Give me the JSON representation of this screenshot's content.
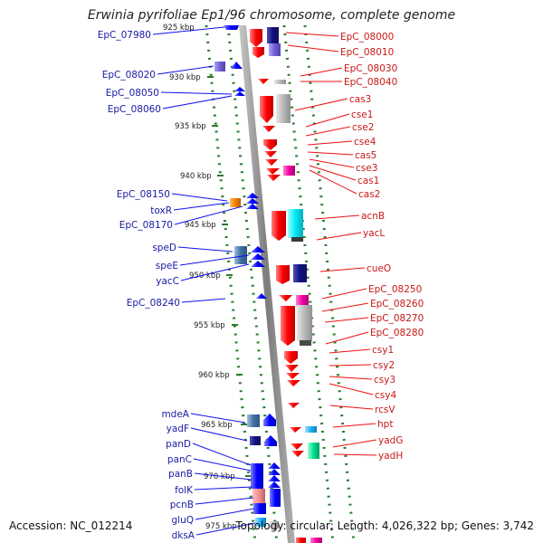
{
  "title": "Erwinia pyrifoliae Ep1/96 chromosome, complete genome",
  "footer": {
    "accession": "Accession: NC_012214",
    "topology": "Topology: circular; Length: 4,026,322 bp; Genes: 3,742"
  },
  "scale_ticks": [
    "925 kbp",
    "930 kbp",
    "935 kbp",
    "940 kbp",
    "945 kbp",
    "950 kbp",
    "955 kbp",
    "960 kbp",
    "965 kbp",
    "970 kbp",
    "975 kbp"
  ],
  "left_labels": [
    "EpC_07980",
    "EpC_08020",
    "EpC_08050",
    "EpC_08060",
    "EpC_08150",
    "toxR",
    "EpC_08170",
    "speD",
    "speE",
    "yacC",
    "EpC_08240",
    "mdeA",
    "yadF",
    "panD",
    "panC",
    "panB",
    "folK",
    "pcnB",
    "gluQ",
    "dksA"
  ],
  "right_labels": [
    "EpC_08000",
    "EpC_08010",
    "EpC_08030",
    "EpC_08040",
    "cas3",
    "cse1",
    "cse2",
    "cse4",
    "cas5",
    "cse3",
    "cas1",
    "cas2",
    "acnB",
    "yacL",
    "cueO",
    "EpC_08250",
    "EpC_08260",
    "EpC_08270",
    "EpC_08280",
    "csy1",
    "csy2",
    "csy3",
    "csy4",
    "rcsV",
    "hpt",
    "yadG",
    "yadH"
  ],
  "colors": {
    "forward_gene": "#1010ee",
    "reverse_gene": "#ee1010",
    "backbone": "#888888",
    "tick_marks": "#2a7a2a",
    "left_label_text": "#1a1aa6",
    "right_label_text": "#c81818"
  }
}
